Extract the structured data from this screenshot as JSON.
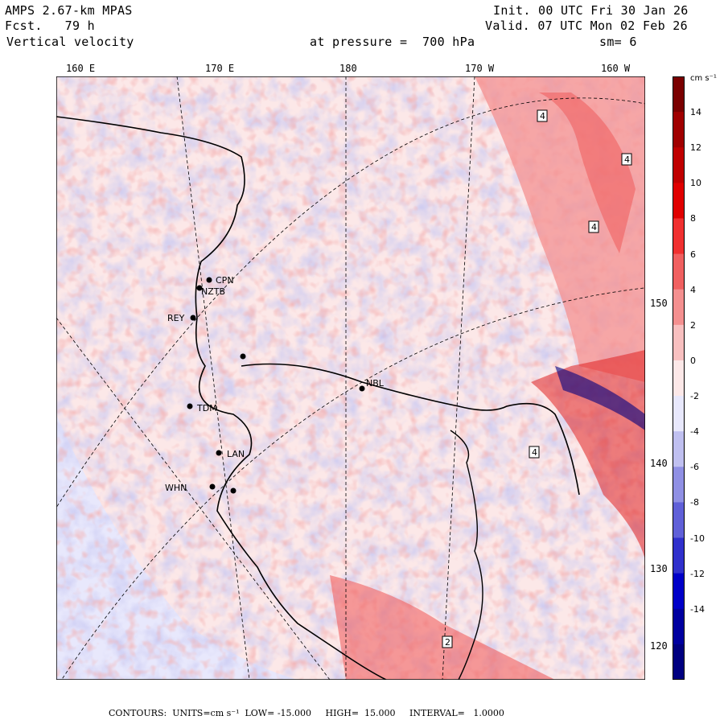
{
  "header": {
    "model": "AMPS 2.67-km MPAS",
    "fcst": "Fcst.   79 h",
    "field": "Vertical velocity",
    "init": "Init. 00 UTC Fri 30 Jan 26",
    "valid": "Valid. 07 UTC Mon 02 Feb 26",
    "pressure": "at pressure =  700 hPa",
    "smooth": "sm= 6"
  },
  "longitude_labels": [
    "160 E",
    "170 E",
    "180",
    "170 W",
    "160 W"
  ],
  "latitude_labels": [
    "150 W",
    "140 W",
    "130 W",
    "120 W"
  ],
  "colorbar": {
    "units": "cm s⁻¹",
    "ticks": [
      "14",
      "12",
      "10",
      "8",
      "6",
      "4",
      "2",
      "0",
      "-2",
      "-4",
      "-6",
      "-8",
      "-10",
      "-12",
      "-14"
    ],
    "colors": [
      "#7a0000",
      "#a00000",
      "#c00000",
      "#e00000",
      "#f03030",
      "#f06060",
      "#f49090",
      "#f8c0c0",
      "#fce8e8",
      "#e8e8fc",
      "#c0c0f0",
      "#9090e4",
      "#6060d8",
      "#3030cc",
      "#0000c8",
      "#0000a0",
      "#000080"
    ]
  },
  "stations": [
    "CPN",
    "NZTB",
    "REY",
    "TDM",
    "LAN",
    "WHN",
    "NBL"
  ],
  "footer": {
    "text": "CONTOURS:  UNITS=cm s⁻¹  LOW= -15.000     HIGH=  15.000     INTERVAL=   1.0000"
  }
}
